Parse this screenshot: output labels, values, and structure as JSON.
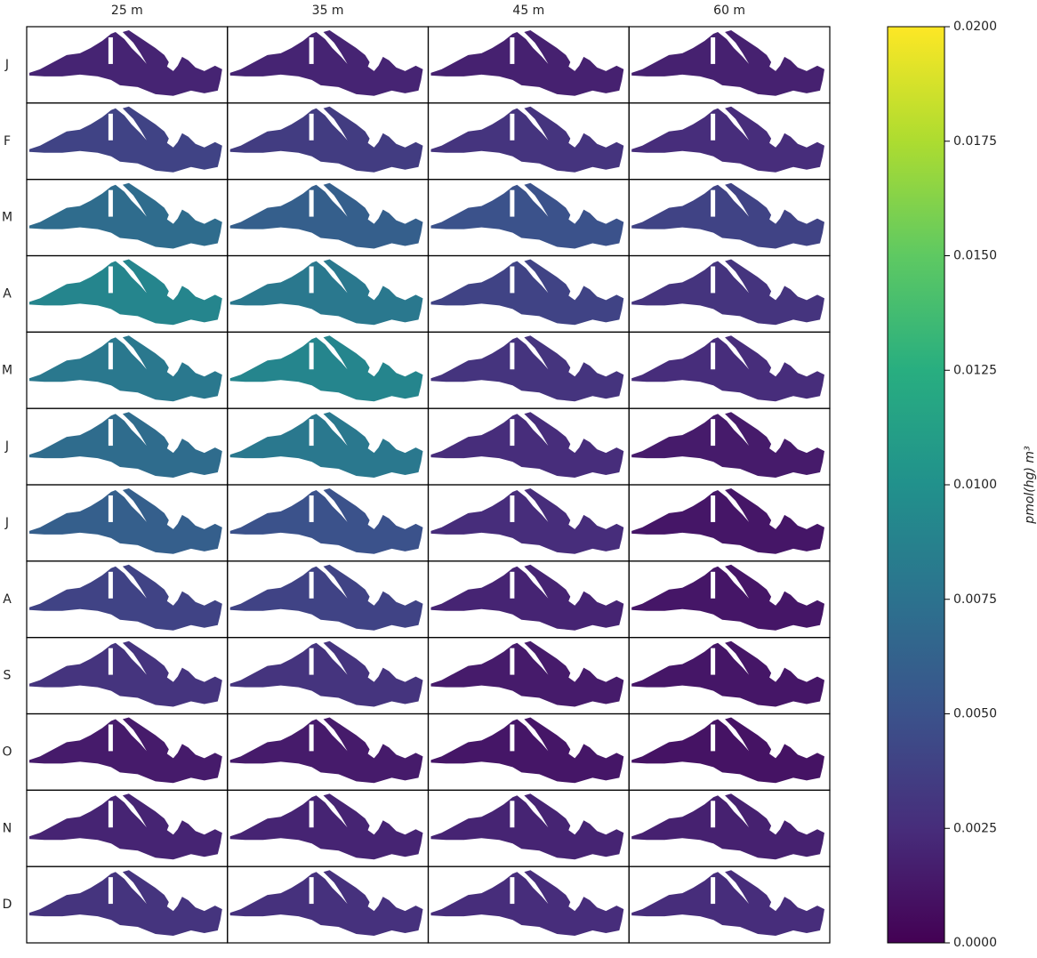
{
  "chart_data": {
    "type": "map-grid",
    "columns": [
      "25 m",
      "35 m",
      "45 m",
      "60 m"
    ],
    "rows": [
      "J",
      "F",
      "M",
      "A",
      "M",
      "J",
      "J",
      "A",
      "S",
      "O",
      "N",
      "D"
    ],
    "values": [
      [
        0.002,
        0.002,
        0.0018,
        0.0018
      ],
      [
        0.004,
        0.0035,
        0.003,
        0.0025
      ],
      [
        0.007,
        0.006,
        0.005,
        0.004
      ],
      [
        0.009,
        0.008,
        0.004,
        0.003
      ],
      [
        0.008,
        0.009,
        0.003,
        0.0025
      ],
      [
        0.007,
        0.008,
        0.0025,
        0.0015
      ],
      [
        0.006,
        0.005,
        0.0025,
        0.0012
      ],
      [
        0.004,
        0.004,
        0.002,
        0.0012
      ],
      [
        0.003,
        0.003,
        0.0015,
        0.0012
      ],
      [
        0.0015,
        0.0015,
        0.0012,
        0.001
      ],
      [
        0.002,
        0.002,
        0.002,
        0.0018
      ],
      [
        0.003,
        0.0028,
        0.0025,
        0.0025
      ]
    ],
    "colormap": "viridis",
    "colorbar": {
      "label": "pmol(hg) m³",
      "lim": [
        0,
        0.02
      ],
      "ticks": [
        {
          "value": 0,
          "label": "0.0000"
        },
        {
          "value": 0.0025,
          "label": "0.0025"
        },
        {
          "value": 0.005,
          "label": "0.0050"
        },
        {
          "value": 0.0075,
          "label": "0.0075"
        },
        {
          "value": 0.01,
          "label": "0.0100"
        },
        {
          "value": 0.0125,
          "label": "0.0125"
        },
        {
          "value": 0.015,
          "label": "0.0150"
        },
        {
          "value": 0.0175,
          "label": "0.0175"
        },
        {
          "value": 0.02,
          "label": "0.0200"
        }
      ]
    }
  }
}
